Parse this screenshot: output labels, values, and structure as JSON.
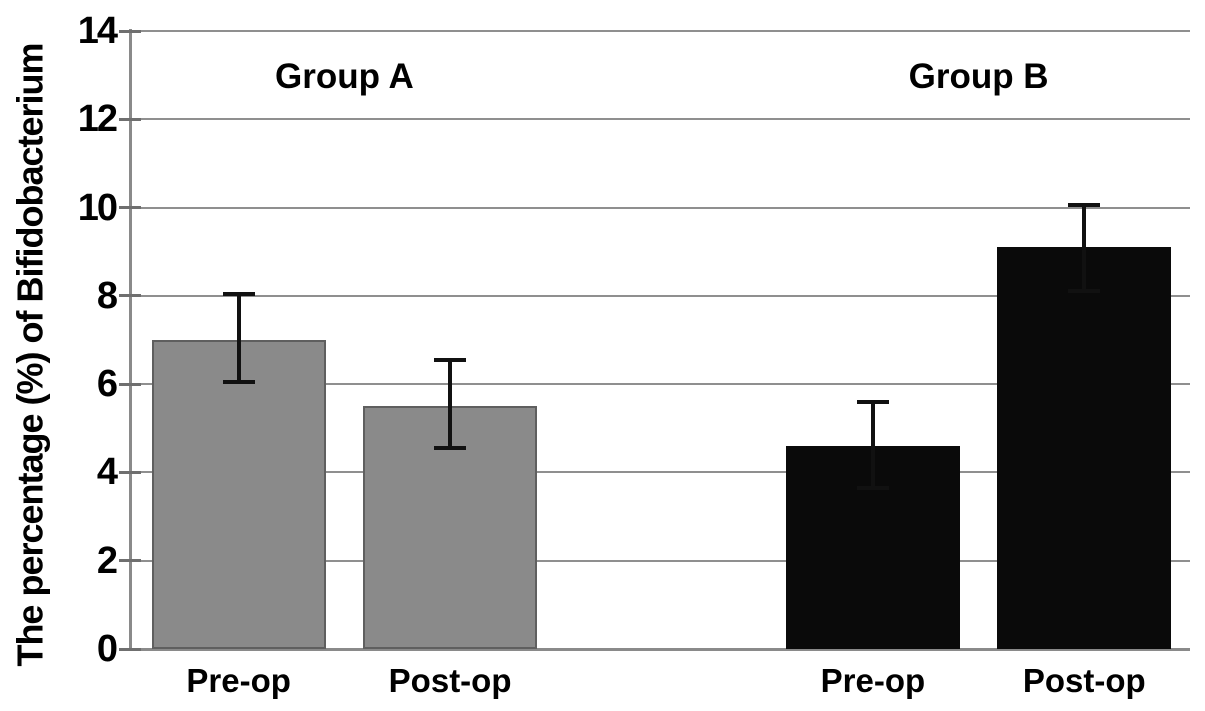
{
  "chart_data": {
    "type": "bar",
    "title": "",
    "xlabel": "",
    "ylabel": "The percentage (%) of Bifidobacterium",
    "ylim": [
      0,
      14
    ],
    "yticks": [
      0,
      2,
      4,
      6,
      8,
      10,
      12,
      14
    ],
    "grid": true,
    "legend_position": "none",
    "n_slots": 5,
    "groups": [
      {
        "name": "Group A",
        "bar_color": "#8a8a8a",
        "bar_border_color": "#5f5f5f",
        "bars": [
          {
            "label": "Pre-op",
            "slot": 0,
            "value": 7.0,
            "err_low": 6.05,
            "err_high": 8.05
          },
          {
            "label": "Post-op",
            "slot": 1,
            "value": 5.5,
            "err_low": 4.55,
            "err_high": 6.55
          }
        ]
      },
      {
        "name": "Group B",
        "bar_color": "#0a0a0a",
        "bar_border_color": "#0a0a0a",
        "bars": [
          {
            "label": "Pre-op",
            "slot": 3,
            "value": 4.6,
            "err_low": 3.65,
            "err_high": 5.6
          },
          {
            "label": "Post-op",
            "slot": 4,
            "value": 9.1,
            "err_low": 8.1,
            "err_high": 10.05
          }
        ]
      }
    ],
    "colors": {
      "background": "#ffffff",
      "gridline": "#8f8f8f",
      "axis": "#8a8a8a",
      "tick": "#6f6f6f",
      "error_bar": "#111111",
      "text": "#000000"
    }
  }
}
